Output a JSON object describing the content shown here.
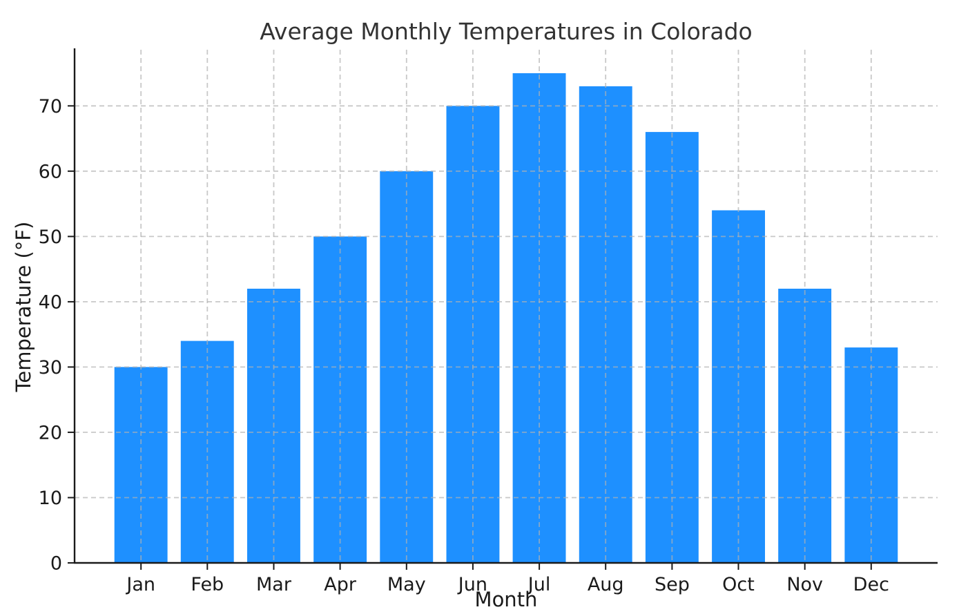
{
  "chart_data": {
    "type": "bar",
    "title": "Average Monthly Temperatures in Colorado",
    "xlabel": "Month",
    "ylabel": "Temperature (°F)",
    "categories": [
      "Jan",
      "Feb",
      "Mar",
      "Apr",
      "May",
      "Jun",
      "Jul",
      "Aug",
      "Sep",
      "Oct",
      "Nov",
      "Dec"
    ],
    "values": [
      30,
      34,
      42,
      50,
      60,
      70,
      75,
      73,
      66,
      54,
      42,
      33
    ],
    "yticks": [
      0,
      10,
      20,
      30,
      40,
      50,
      60,
      70
    ],
    "ylim": [
      0,
      78.6
    ],
    "grid": true,
    "grid_style": "dashed",
    "grid_axes": "both",
    "legend_position": "none",
    "colors": {
      "bar": "#1E90FF",
      "grid": "#b0b0b0",
      "spine": "#1a1a1a",
      "tick": "#1a1a1a",
      "title_text": "#333333",
      "background": "#ffffff"
    }
  }
}
